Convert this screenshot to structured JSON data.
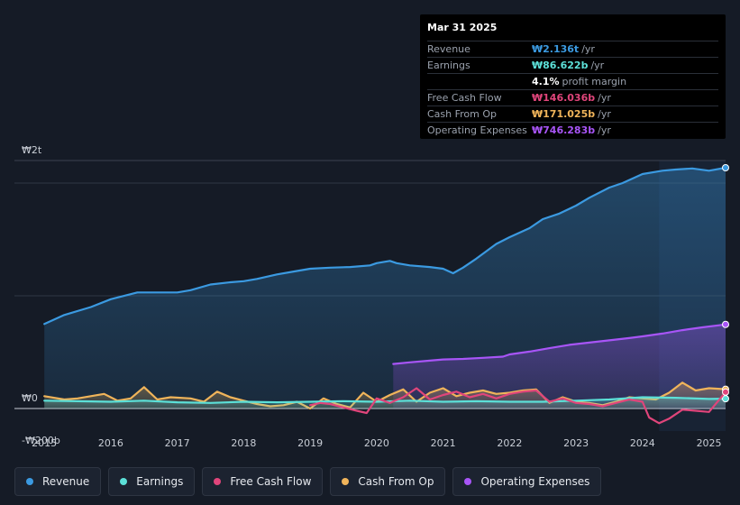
{
  "tooltip": {
    "date": "Mar 31 2025",
    "rows": [
      {
        "label": "Revenue",
        "value": "₩2.136t",
        "unit": "/yr",
        "color": "#3b9ae1"
      },
      {
        "label": "Earnings",
        "value": "₩86.622b",
        "unit": "/yr",
        "color": "#5ce0d8"
      },
      {
        "label": "",
        "value": "4.1%",
        "unit": "profit margin",
        "color": "#ffffff"
      },
      {
        "label": "Free Cash Flow",
        "value": "₩146.036b",
        "unit": "/yr",
        "color": "#e0457b"
      },
      {
        "label": "Cash From Op",
        "value": "₩171.025b",
        "unit": "/yr",
        "color": "#f0b45a"
      },
      {
        "label": "Operating Expenses",
        "value": "₩746.283b",
        "unit": "/yr",
        "color": "#a855f7"
      }
    ]
  },
  "chart_data": {
    "type": "line",
    "title": "",
    "xlabel": "",
    "ylabel": "",
    "y_unit": "₩ billions",
    "ylim": [
      -200,
      2200
    ],
    "y_tick_labels": [
      {
        "value": 2000,
        "label": "₩2t"
      },
      {
        "value": 0,
        "label": "₩0"
      },
      {
        "value": -200,
        "label": "-₩200b"
      }
    ],
    "gridlines": [
      2000,
      1000,
      0
    ],
    "x_ticks": [
      "2015",
      "2016",
      "2017",
      "2018",
      "2019",
      "2020",
      "2021",
      "2022",
      "2023",
      "2024",
      "2025"
    ],
    "xlim": [
      2014.55,
      2025.25
    ],
    "forecast_start": 2024.25,
    "series": [
      {
        "name": "Revenue",
        "color": "#3b9ae1",
        "area": true,
        "x": [
          2015.0,
          2015.3,
          2015.7,
          2016.0,
          2016.4,
          2016.7,
          2017.0,
          2017.2,
          2017.5,
          2017.8,
          2018.0,
          2018.2,
          2018.5,
          2018.8,
          2019.0,
          2019.3,
          2019.6,
          2019.9,
          2020.0,
          2020.2,
          2020.3,
          2020.5,
          2020.8,
          2021.0,
          2021.15,
          2021.3,
          2021.5,
          2021.8,
          2022.0,
          2022.3,
          2022.5,
          2022.75,
          2023.0,
          2023.2,
          2023.5,
          2023.7,
          2024.0,
          2024.3,
          2024.5,
          2024.75,
          2025.0,
          2025.25
        ],
        "values": [
          750,
          830,
          900,
          970,
          1030,
          1030,
          1030,
          1050,
          1100,
          1120,
          1130,
          1150,
          1190,
          1220,
          1240,
          1250,
          1255,
          1270,
          1290,
          1310,
          1290,
          1270,
          1255,
          1240,
          1200,
          1250,
          1330,
          1460,
          1520,
          1600,
          1680,
          1730,
          1800,
          1870,
          1960,
          2000,
          2080,
          2110,
          2120,
          2130,
          2110,
          2136
        ]
      },
      {
        "name": "Operating Expenses",
        "color": "#a855f7",
        "area": true,
        "x": [
          2020.25,
          2020.5,
          2020.8,
          2021.0,
          2021.3,
          2021.6,
          2021.9,
          2022.0,
          2022.3,
          2022.6,
          2022.9,
          2023.2,
          2023.5,
          2023.8,
          2024.0,
          2024.3,
          2024.6,
          2024.9,
          2025.25
        ],
        "values": [
          395,
          410,
          425,
          435,
          440,
          450,
          460,
          480,
          505,
          535,
          565,
          585,
          605,
          625,
          640,
          665,
          695,
          720,
          746
        ]
      },
      {
        "name": "Cash From Op",
        "color": "#f0b45a",
        "area": true,
        "x": [
          2015.0,
          2015.3,
          2015.5,
          2015.7,
          2015.9,
          2016.1,
          2016.3,
          2016.5,
          2016.7,
          2016.9,
          2017.2,
          2017.4,
          2017.6,
          2017.8,
          2018.0,
          2018.2,
          2018.4,
          2018.6,
          2018.8,
          2019.0,
          2019.2,
          2019.4,
          2019.6,
          2019.8,
          2020.0,
          2020.2,
          2020.4,
          2020.6,
          2020.8,
          2021.0,
          2021.2,
          2021.4,
          2021.6,
          2021.8,
          2022.0,
          2022.2,
          2022.4,
          2022.6,
          2022.8,
          2023.0,
          2023.2,
          2023.4,
          2023.6,
          2023.8,
          2024.0,
          2024.2,
          2024.4,
          2024.6,
          2024.8,
          2025.0,
          2025.25
        ],
        "values": [
          110,
          80,
          90,
          110,
          130,
          70,
          90,
          190,
          80,
          100,
          90,
          60,
          150,
          100,
          70,
          40,
          20,
          30,
          60,
          0,
          90,
          40,
          10,
          140,
          60,
          120,
          170,
          60,
          140,
          180,
          110,
          140,
          160,
          130,
          140,
          160,
          170,
          50,
          100,
          60,
          50,
          30,
          60,
          100,
          90,
          80,
          140,
          230,
          160,
          180,
          171
        ]
      },
      {
        "name": "Earnings",
        "color": "#5ce0d8",
        "area": true,
        "x": [
          2015.0,
          2015.5,
          2016.0,
          2016.5,
          2017.0,
          2017.5,
          2018.0,
          2018.5,
          2019.0,
          2019.5,
          2020.0,
          2020.5,
          2021.0,
          2021.5,
          2022.0,
          2022.5,
          2023.0,
          2023.5,
          2024.0,
          2024.5,
          2025.0,
          2025.25
        ],
        "values": [
          70,
          65,
          60,
          70,
          55,
          50,
          60,
          55,
          60,
          65,
          60,
          70,
          60,
          65,
          60,
          60,
          70,
          80,
          100,
          95,
          85,
          87
        ]
      },
      {
        "name": "Free Cash Flow",
        "color": "#e0457b",
        "area": false,
        "x": [
          2019.0,
          2019.15,
          2019.3,
          2019.5,
          2019.7,
          2019.85,
          2020.0,
          2020.2,
          2020.4,
          2020.6,
          2020.8,
          2021.0,
          2021.2,
          2021.4,
          2021.6,
          2021.8,
          2022.0,
          2022.2,
          2022.4,
          2022.6,
          2022.8,
          2023.0,
          2023.2,
          2023.4,
          2023.6,
          2023.8,
          2024.0,
          2024.1,
          2024.25,
          2024.4,
          2024.6,
          2024.8,
          2025.0,
          2025.25
        ],
        "values": [
          30,
          50,
          40,
          10,
          -20,
          -40,
          90,
          50,
          100,
          180,
          80,
          120,
          150,
          100,
          130,
          90,
          130,
          150,
          160,
          60,
          90,
          50,
          40,
          20,
          50,
          80,
          60,
          -80,
          -130,
          -90,
          -10,
          -20,
          -30,
          146
        ]
      }
    ]
  },
  "legend": [
    {
      "label": "Revenue",
      "color": "#3b9ae1"
    },
    {
      "label": "Earnings",
      "color": "#5ce0d8"
    },
    {
      "label": "Free Cash Flow",
      "color": "#e0457b"
    },
    {
      "label": "Cash From Op",
      "color": "#f0b45a"
    },
    {
      "label": "Operating Expenses",
      "color": "#a855f7"
    }
  ]
}
